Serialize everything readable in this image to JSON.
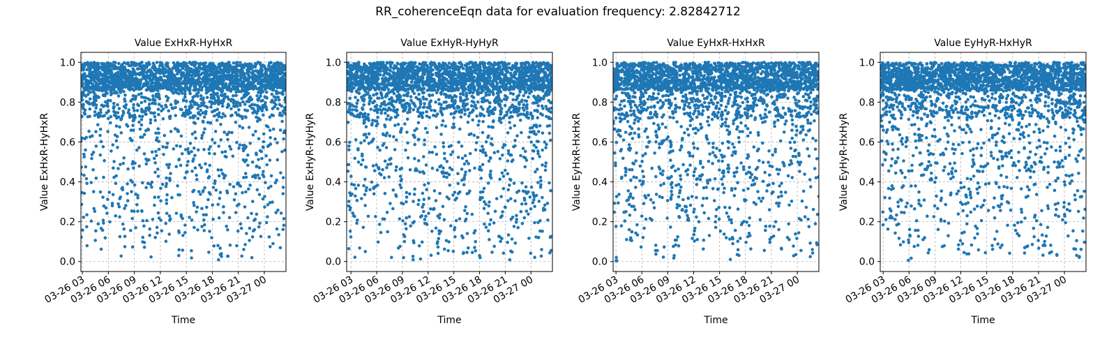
{
  "figure": {
    "suptitle": "RR_coherenceEqn data for evaluation frequency: 2.82842712"
  },
  "style": {
    "marker_color": "#1f77b4",
    "grid_color": "#b0b0b0"
  },
  "chart_data": [
    {
      "type": "scatter",
      "title": "Value ExHxR-HyHxR",
      "xlabel": "Time",
      "ylabel": "Value ExHxR-HyHxR",
      "xlim": [
        "2024-03-26 02:50",
        "2024-03-27 02:30"
      ],
      "ylim": [
        -0.05,
        1.05
      ],
      "xticks": [
        "03-26 03",
        "03-26 06",
        "03-26 09",
        "03-26 12",
        "03-26 15",
        "03-26 18",
        "03-26 21",
        "03-27 00"
      ],
      "yticks": [
        "0.0",
        "0.2",
        "0.4",
        "0.6",
        "0.8",
        "1.0"
      ],
      "grid": true,
      "point_count": 2800,
      "value_distribution": "dense near 1.0 (0.8 to 1.0), sparser toward 0.0"
    },
    {
      "type": "scatter",
      "title": "Value ExHyR-HyHyR",
      "xlabel": "Time",
      "ylabel": "Value ExHyR-HyHyR",
      "xlim": [
        "2024-03-26 02:30",
        "2024-03-27 02:30"
      ],
      "ylim": [
        -0.05,
        1.05
      ],
      "xticks": [
        "03-26 03",
        "03-26 06",
        "03-26 09",
        "03-26 12",
        "03-26 15",
        "03-26 18",
        "03-26 21",
        "03-27 00"
      ],
      "yticks": [
        "0.0",
        "0.2",
        "0.4",
        "0.6",
        "0.8",
        "1.0"
      ],
      "grid": true,
      "point_count": 2800,
      "value_distribution": "dense near 1.0 (0.8 to 1.0), sparser toward 0.0"
    },
    {
      "type": "scatter",
      "title": "Value EyHxR-HxHxR",
      "xlabel": "Time",
      "ylabel": "Value EyHxR-HxHxR",
      "xlim": [
        "2024-03-26 02:40",
        "2024-03-27 02:30"
      ],
      "ylim": [
        -0.05,
        1.05
      ],
      "xticks": [
        "03-26 03",
        "03-26 06",
        "03-26 09",
        "03-26 12",
        "03-26 15",
        "03-26 18",
        "03-26 21",
        "03-27 00"
      ],
      "yticks": [
        "0.0",
        "0.2",
        "0.4",
        "0.6",
        "0.8",
        "1.0"
      ],
      "grid": true,
      "point_count": 2800,
      "value_distribution": "dense near 1.0 (0.8 to 1.0), spread down to 0.0"
    },
    {
      "type": "scatter",
      "title": "Value EyHyR-HxHyR",
      "xlabel": "Time",
      "ylabel": "Value EyHyR-HxHyR",
      "xlim": [
        "2024-03-26 02:40",
        "2024-03-27 02:30"
      ],
      "ylim": [
        -0.05,
        1.05
      ],
      "xticks": [
        "03-26 03",
        "03-26 06",
        "03-26 09",
        "03-26 12",
        "03-26 15",
        "03-26 18",
        "03-26 21",
        "03-27 00"
      ],
      "yticks": [
        "0.0",
        "0.2",
        "0.4",
        "0.6",
        "0.8",
        "1.0"
      ],
      "grid": true,
      "point_count": 2800,
      "value_distribution": "dense near 1.0 (0.8 to 1.0), spread down to 0.0"
    }
  ]
}
